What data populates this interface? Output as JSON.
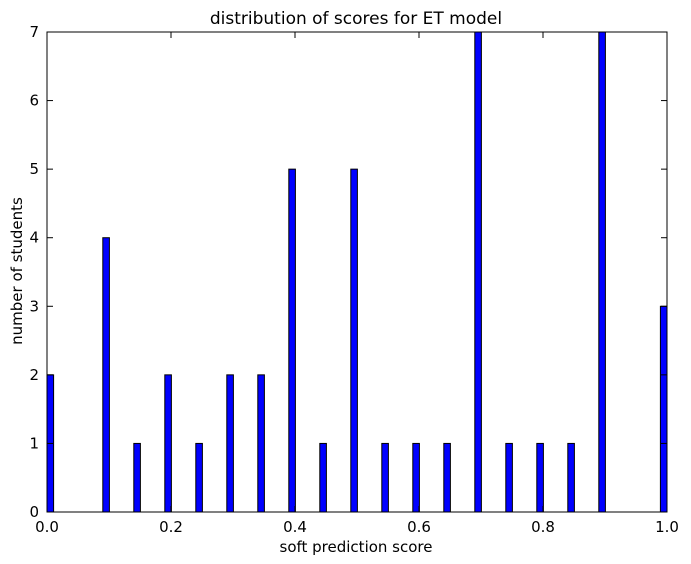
{
  "chart_data": {
    "type": "bar",
    "title": "distribution of scores for ET model",
    "xlabel": "soft prediction score",
    "ylabel": "number of students",
    "xlim": [
      0.0,
      1.0
    ],
    "ylim": [
      0,
      7
    ],
    "xticks": [
      "0.0",
      "0.2",
      "0.4",
      "0.6",
      "0.8",
      "1.0"
    ],
    "yticks": [
      "0",
      "1",
      "2",
      "3",
      "4",
      "5",
      "6",
      "7"
    ],
    "grid": false,
    "bar_color": "#0000ff",
    "bin_width": 0.01,
    "bins": [
      {
        "x": 0.0,
        "count": 2
      },
      {
        "x": 0.09,
        "count": 4
      },
      {
        "x": 0.14,
        "count": 1
      },
      {
        "x": 0.19,
        "count": 2
      },
      {
        "x": 0.24,
        "count": 1
      },
      {
        "x": 0.29,
        "count": 2
      },
      {
        "x": 0.34,
        "count": 2
      },
      {
        "x": 0.39,
        "count": 5
      },
      {
        "x": 0.44,
        "count": 1
      },
      {
        "x": 0.49,
        "count": 5
      },
      {
        "x": 0.54,
        "count": 1
      },
      {
        "x": 0.59,
        "count": 1
      },
      {
        "x": 0.64,
        "count": 1
      },
      {
        "x": 0.69,
        "count": 7
      },
      {
        "x": 0.74,
        "count": 1
      },
      {
        "x": 0.79,
        "count": 1
      },
      {
        "x": 0.84,
        "count": 1
      },
      {
        "x": 0.89,
        "count": 7
      },
      {
        "x": 0.99,
        "count": 3
      }
    ]
  }
}
